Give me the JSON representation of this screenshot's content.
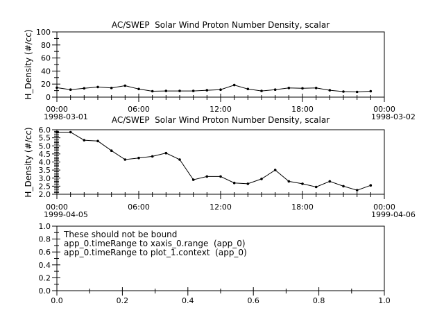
{
  "window": {
    "background": "#ffffff",
    "foreground": "#000000",
    "line_color": "#000000",
    "marker_color": "#000000"
  },
  "chart_data": [
    {
      "type": "line",
      "title": "AC/SWEP  Solar Wind Proton Number Density, scalar",
      "ylabel": "H_Density (#/cc)",
      "xlabel": "",
      "legend": "none",
      "grid": false,
      "xlim_hours": [
        0,
        24
      ],
      "ylim": [
        0,
        100
      ],
      "yticks_major": [
        0,
        20,
        40,
        60,
        80,
        100
      ],
      "ytick_labels": [
        "0",
        "20",
        "40",
        "60",
        "80",
        "100"
      ],
      "y_minor_step": 10,
      "xticks_major_hours": [
        0,
        6,
        12,
        18,
        24
      ],
      "xtick_labels": [
        "00:00",
        "06:00",
        "12:00",
        "18:00",
        "00:00"
      ],
      "x_minor_step_hours": 1,
      "date_left": "1998-03-01",
      "date_right": "1998-03-02",
      "x_hours": [
        0,
        1,
        2,
        3,
        4,
        5,
        6,
        7,
        8,
        9,
        10,
        11,
        12,
        13,
        14,
        15,
        16,
        17,
        18,
        19,
        20,
        21,
        22,
        23
      ],
      "values": [
        14.5,
        11.5,
        13.5,
        15.5,
        14,
        17.5,
        12.5,
        9,
        9.5,
        9.5,
        9.5,
        10.5,
        11.5,
        18.5,
        12.5,
        9.5,
        11.5,
        14,
        13.5,
        14,
        10.5,
        8.5,
        8,
        9
      ]
    },
    {
      "type": "line",
      "title": "AC/SWEP  Solar Wind Proton Number Density, scalar",
      "ylabel": "H_Density (#/cc)",
      "xlabel": "",
      "legend": "none",
      "grid": false,
      "xlim_hours": [
        0,
        24
      ],
      "ylim": [
        2.0,
        6.0
      ],
      "yticks_major": [
        2.0,
        2.5,
        3.0,
        3.5,
        4.0,
        4.5,
        5.0,
        5.5,
        6.0
      ],
      "ytick_labels": [
        "2.0",
        "2.5",
        "3.0",
        "3.5",
        "4.0",
        "4.5",
        "5.0",
        "5.5",
        "6.0"
      ],
      "y_minor_step": 0.1,
      "xticks_major_hours": [
        0,
        6,
        12,
        18,
        24
      ],
      "xtick_labels": [
        "00:00",
        "06:00",
        "12:00",
        "18:00",
        "00:00"
      ],
      "x_minor_step_hours": 1,
      "date_left": "1999-04-05",
      "date_right": "1999-04-06",
      "x_hours": [
        0,
        1,
        2,
        3,
        4,
        5,
        6,
        7,
        8,
        9,
        10,
        11,
        12,
        13,
        14,
        15,
        16,
        17,
        18,
        19,
        20,
        21,
        22,
        23
      ],
      "values": [
        5.85,
        5.85,
        5.35,
        5.3,
        4.7,
        4.15,
        4.25,
        4.35,
        4.55,
        4.15,
        2.9,
        3.1,
        3.1,
        2.7,
        2.65,
        2.95,
        3.5,
        2.8,
        2.65,
        2.45,
        2.8,
        2.5,
        2.25,
        2.55
      ]
    },
    {
      "type": "empty",
      "title": "",
      "ylabel": "",
      "xlabel": "",
      "grid": false,
      "annotations": [
        "These should not be bound",
        "app_0.timeRange to xaxis_0.range  (app_0)",
        "app_0.timeRange to plot_1.context  (app_0)"
      ],
      "xlim": [
        0.0,
        1.0
      ],
      "ylim": [
        0.0,
        1.0
      ],
      "yticks_major": [
        0.0,
        0.2,
        0.4,
        0.6,
        0.8,
        1.0
      ],
      "ytick_labels": [
        "0.0",
        "0.2",
        "0.4",
        "0.6",
        "0.8",
        "1.0"
      ],
      "y_minor_step": 0.1,
      "xticks_major": [
        0.0,
        0.2,
        0.4,
        0.6,
        0.8,
        1.0
      ],
      "xtick_labels": [
        "0.0",
        "0.2",
        "0.4",
        "0.6",
        "0.8",
        "1.0"
      ],
      "x_minor_step": 0.1
    }
  ]
}
